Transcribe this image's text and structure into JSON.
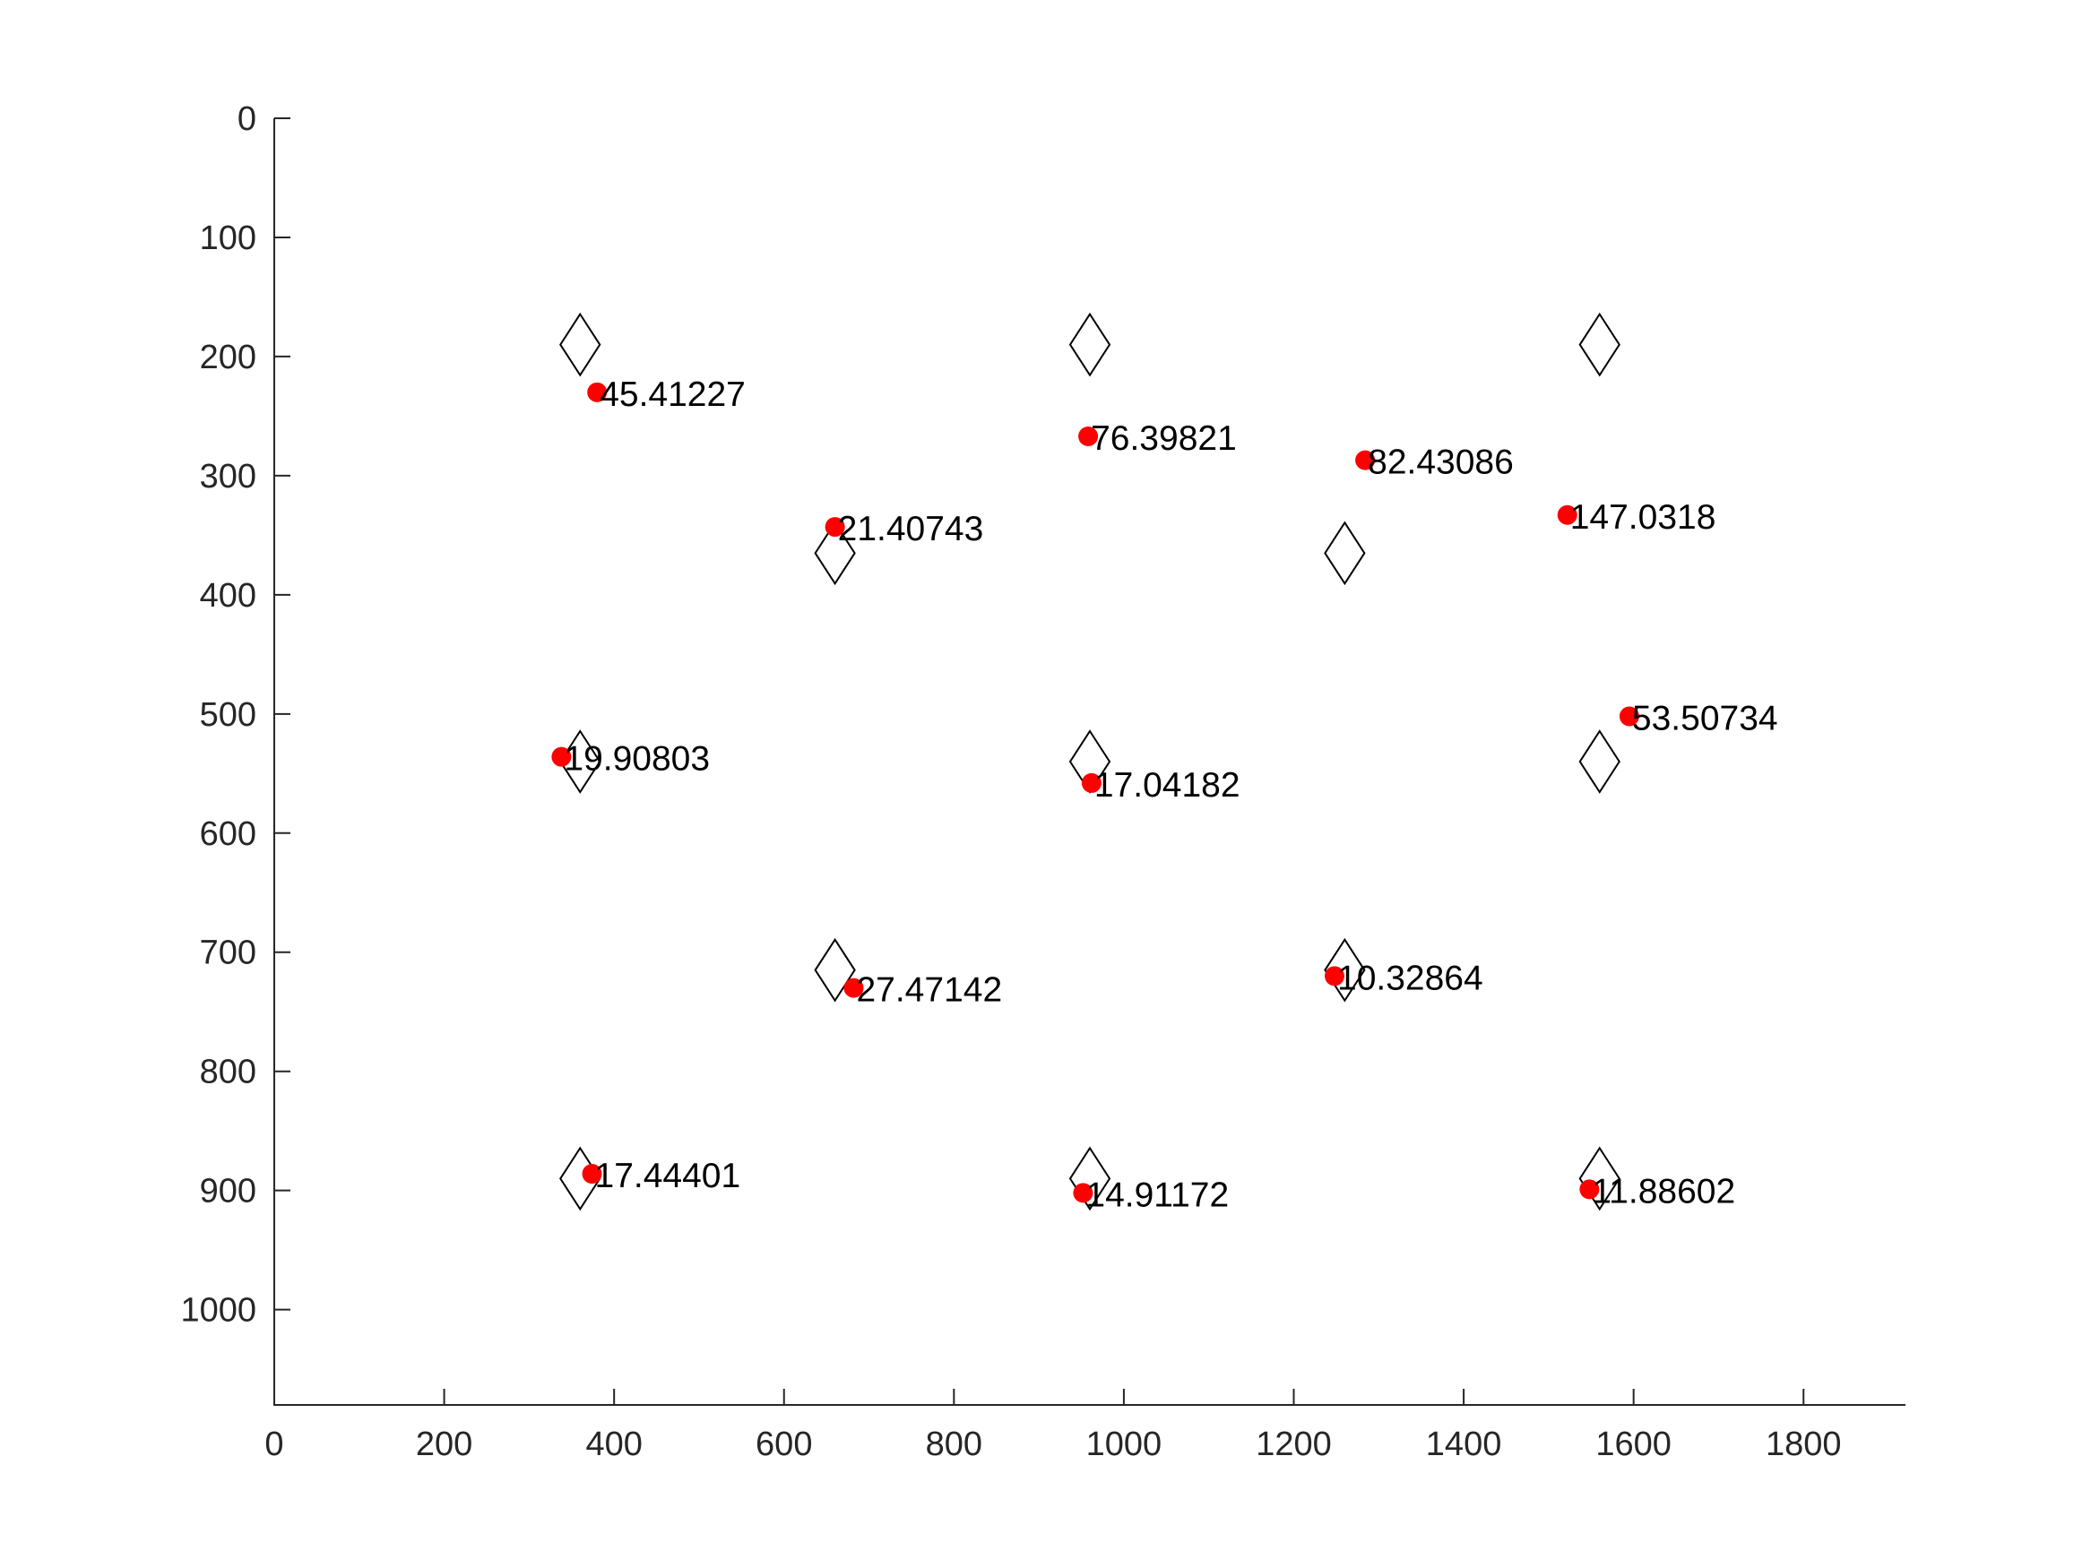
{
  "chart_data": {
    "type": "scatter",
    "title": "",
    "xlabel": "",
    "ylabel": "",
    "xlim": [
      0,
      1920
    ],
    "ylim": [
      0,
      1080
    ],
    "y_reversed": true,
    "grid": false,
    "legend": "none",
    "x_ticks": [
      0,
      200,
      400,
      600,
      800,
      1000,
      1200,
      1400,
      1600,
      1800
    ],
    "y_ticks": [
      0,
      100,
      200,
      300,
      400,
      500,
      600,
      700,
      800,
      900,
      1000
    ],
    "colors": {
      "points": "#ff0000",
      "diamonds": "#000000",
      "axis": "#262626"
    },
    "series": [
      {
        "marker": "diamond",
        "points": [
          {
            "x": 360,
            "y": 190
          },
          {
            "x": 960,
            "y": 190
          },
          {
            "x": 1560,
            "y": 190
          },
          {
            "x": 660,
            "y": 365
          },
          {
            "x": 1260,
            "y": 365
          },
          {
            "x": 360,
            "y": 540
          },
          {
            "x": 960,
            "y": 540
          },
          {
            "x": 1560,
            "y": 540
          },
          {
            "x": 660,
            "y": 715
          },
          {
            "x": 1260,
            "y": 715
          },
          {
            "x": 360,
            "y": 890
          },
          {
            "x": 960,
            "y": 890
          },
          {
            "x": 1560,
            "y": 890
          }
        ]
      },
      {
        "marker": "dot",
        "points": [
          {
            "x": 380,
            "y": 230,
            "label": "45.41227"
          },
          {
            "x": 958,
            "y": 267,
            "label": "76.39821"
          },
          {
            "x": 1284,
            "y": 287,
            "label": "82.43086"
          },
          {
            "x": 660,
            "y": 343,
            "label": "21.40743"
          },
          {
            "x": 1522,
            "y": 333,
            "label": "147.0318"
          },
          {
            "x": 1595,
            "y": 502,
            "label": "53.50734"
          },
          {
            "x": 338,
            "y": 536,
            "label": "19.90803"
          },
          {
            "x": 962,
            "y": 558,
            "label": "17.04182"
          },
          {
            "x": 682,
            "y": 730,
            "label": "27.47142"
          },
          {
            "x": 1248,
            "y": 720,
            "label": "10.32864"
          },
          {
            "x": 374,
            "y": 886,
            "label": "17.44401"
          },
          {
            "x": 952,
            "y": 902,
            "label": "14.91172"
          },
          {
            "x": 1548,
            "y": 899,
            "label": "11.88602"
          }
        ]
      }
    ]
  }
}
